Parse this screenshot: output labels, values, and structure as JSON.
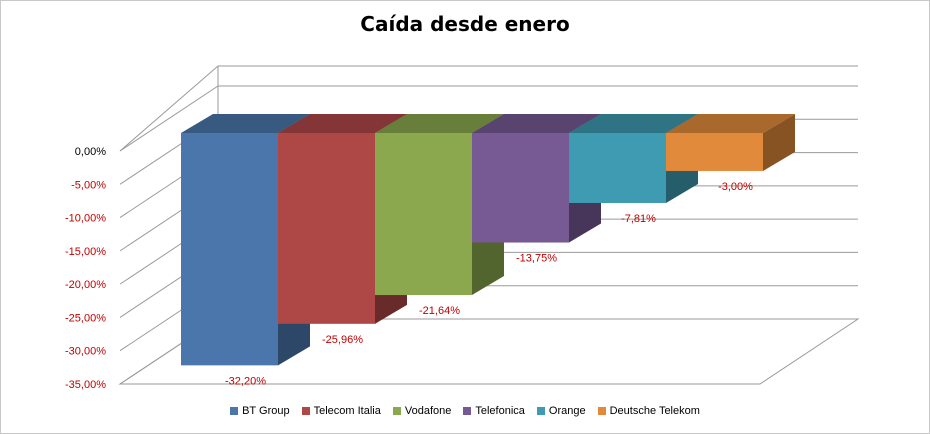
{
  "chart_data": {
    "type": "bar",
    "variant": "3d-column",
    "title": "Caída desde enero",
    "xlabel": "",
    "ylabel": "",
    "ylim": [
      -35,
      0
    ],
    "ytick_values": [
      0,
      -5,
      -10,
      -15,
      -20,
      -25,
      -30,
      -35
    ],
    "ytick_labels": [
      "0,00%",
      "-5,00%",
      "-10,00%",
      "-15,00%",
      "-20,00%",
      "-25,00%",
      "-30,00%",
      "-35,00%"
    ],
    "grid": true,
    "legend_position": "bottom",
    "categories": [
      "BT Group",
      "Telecom Italia",
      "Vodafone",
      "Telefonica",
      "Orange",
      "Deutsche Telekom"
    ],
    "values": [
      -32.2,
      -25.96,
      -21.64,
      -13.75,
      -7.81,
      -3.0
    ],
    "data_labels": [
      "-32,20%",
      "-25,96%",
      "-21,64%",
      "-13,75%",
      "-7,81%",
      "-3,00%"
    ],
    "colors": [
      "#4a76ab",
      "#ae4846",
      "#8ba84f",
      "#775a94",
      "#3f9bb1",
      "#e18a3b"
    ],
    "label_color": "#c00000"
  }
}
